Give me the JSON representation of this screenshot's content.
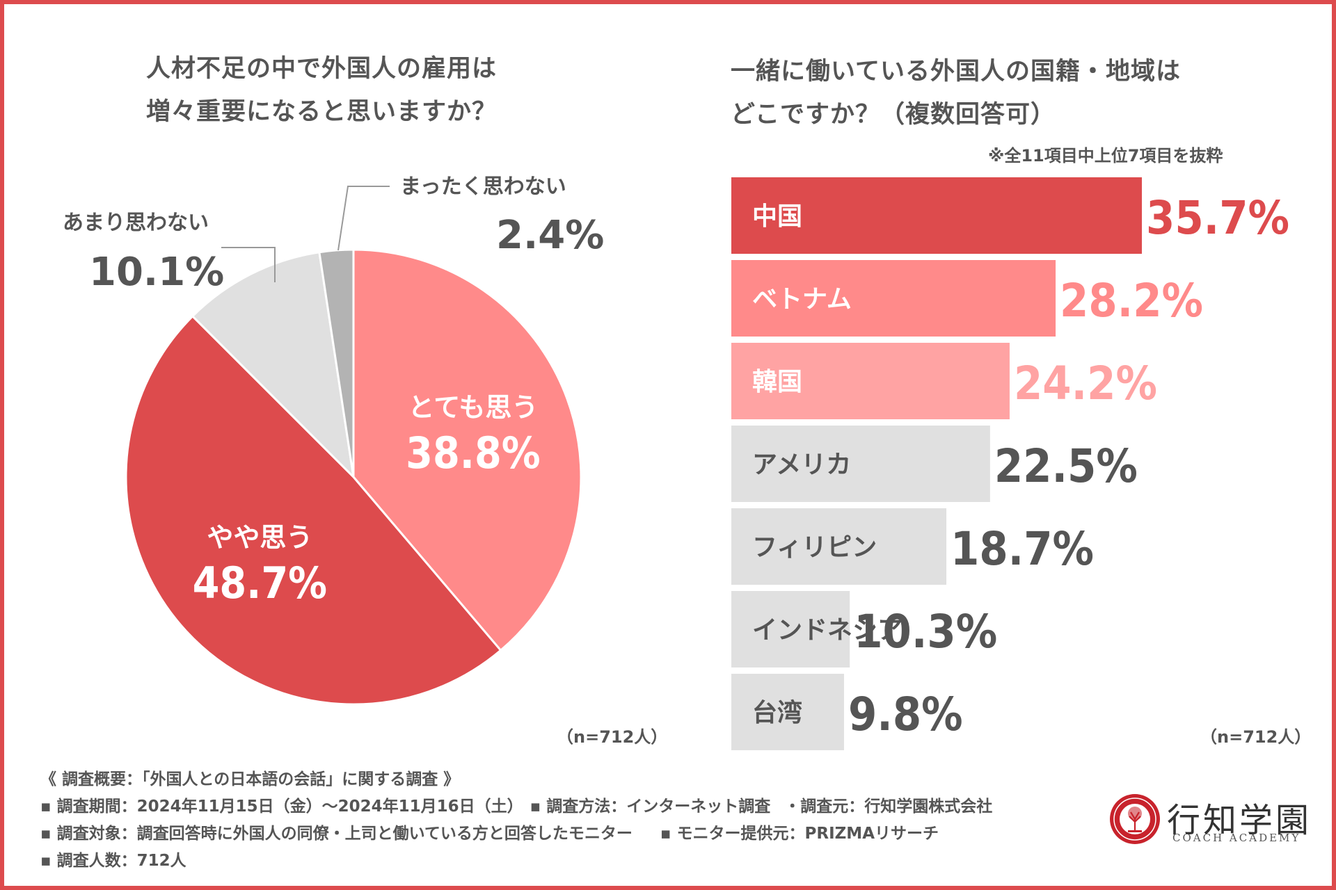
{
  "colors": {
    "frame": "#dd4b4d",
    "dark_red": "#dd4b4d",
    "pink": "#ff8a8a",
    "light_pink": "#ffa3a3",
    "light_gray": "#e0e0e0",
    "mid_gray": "#b3b3b3",
    "text": "#555555",
    "white": "#ffffff"
  },
  "pie": {
    "title_line1": "人材不足の中で外国人の雇用は",
    "title_line2": "増々重要になると思いますか？",
    "n_label": "（n=712人）"
  },
  "bars": {
    "title_line1": "一緒に働いている外国人の国籍・地域は",
    "title_line2": "どこですか？（複数回答可）",
    "note": "※全11項目中上位7項目を抜粋",
    "n_label": "（n=712人）"
  },
  "chart_data": [
    {
      "type": "pie",
      "title": "人材不足の中で外国人の雇用は増々重要になると思いますか？",
      "slices": [
        {
          "label": "とても思う",
          "value": 38.8,
          "value_label": "38.8%",
          "color": "#ff8a8a",
          "label_style": "inside"
        },
        {
          "label": "やや思う",
          "value": 48.7,
          "value_label": "48.7%",
          "color": "#dd4b4d",
          "label_style": "inside"
        },
        {
          "label": "あまり思わない",
          "value": 10.1,
          "value_label": "10.1%",
          "color": "#e0e0e0",
          "label_style": "outside"
        },
        {
          "label": "まったく思わない",
          "value": 2.4,
          "value_label": "2.4%",
          "color": "#b3b3b3",
          "label_style": "outside"
        }
      ]
    },
    {
      "type": "bar",
      "orientation": "horizontal",
      "title": "一緒に働いている外国人の国籍・地域はどこですか？（複数回答可）",
      "categories": [
        "中国",
        "ベトナム",
        "韓国",
        "アメリカ",
        "フィリピン",
        "インドネシア",
        "台湾"
      ],
      "values": [
        35.7,
        28.2,
        24.2,
        22.5,
        18.7,
        10.3,
        9.8
      ],
      "value_labels": [
        "35.7%",
        "28.2%",
        "24.2%",
        "22.5%",
        "18.7%",
        "10.3%",
        "9.8%"
      ],
      "bar_colors": [
        "#dd4b4d",
        "#ff8a8a",
        "#ffa3a3",
        "#e0e0e0",
        "#e0e0e0",
        "#e0e0e0",
        "#e0e0e0"
      ],
      "value_colors": [
        "#dd4b4d",
        "#ff8a8a",
        "#ffa3a3",
        "#555555",
        "#555555",
        "#555555",
        "#555555"
      ],
      "label_colors": [
        "#ffffff",
        "#ffffff",
        "#ffffff",
        "#555555",
        "#555555",
        "#555555",
        "#555555"
      ],
      "xlim": [
        0,
        35.7
      ]
    }
  ],
  "survey": {
    "heading": "《 調査概要：「外国人との日本語の会話」に関する調査 》",
    "period": "▪ 調査期間：2024年11月15日（金）〜2024年11月16日（土）",
    "method": "▪ 調査方法：インターネット調査",
    "source": "・調査元：行知学園株式会社",
    "target": "▪ 調査対象：調査回答時に外国人の同僚・上司と働いている方と回答したモニター",
    "provider": "▪ モニター提供元：PRIZMAリサーチ",
    "count": "▪ 調査人数：712人"
  },
  "logo": {
    "name": "行知学園",
    "subtitle": "COACH ACADEMY"
  }
}
